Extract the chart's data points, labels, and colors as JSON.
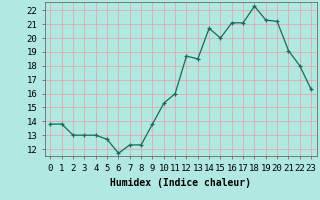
{
  "x": [
    0,
    1,
    2,
    3,
    4,
    5,
    6,
    7,
    8,
    9,
    10,
    11,
    12,
    13,
    14,
    15,
    16,
    17,
    18,
    19,
    20,
    21,
    22,
    23
  ],
  "y": [
    13.8,
    13.8,
    13.0,
    13.0,
    13.0,
    12.7,
    11.7,
    12.3,
    12.3,
    13.8,
    15.3,
    16.0,
    18.7,
    18.5,
    20.7,
    20.0,
    21.1,
    21.1,
    22.3,
    21.3,
    21.2,
    19.1,
    18.0,
    16.3
  ],
  "line_color": "#1a6b5a",
  "marker": "+",
  "marker_size": 3,
  "bg_color": "#b2e8e2",
  "grid_color": "#e8a0a0",
  "xlabel": "Humidex (Indice chaleur)",
  "ylabel_ticks": [
    12,
    13,
    14,
    15,
    16,
    17,
    18,
    19,
    20,
    21,
    22
  ],
  "xlim": [
    -0.5,
    23.5
  ],
  "ylim": [
    11.5,
    22.6
  ],
  "xtick_labels": [
    "0",
    "1",
    "2",
    "3",
    "4",
    "5",
    "6",
    "7",
    "8",
    "9",
    "10",
    "11",
    "12",
    "13",
    "14",
    "15",
    "16",
    "17",
    "18",
    "19",
    "20",
    "21",
    "22",
    "23"
  ],
  "label_fontsize": 7,
  "tick_fontsize": 6.5
}
